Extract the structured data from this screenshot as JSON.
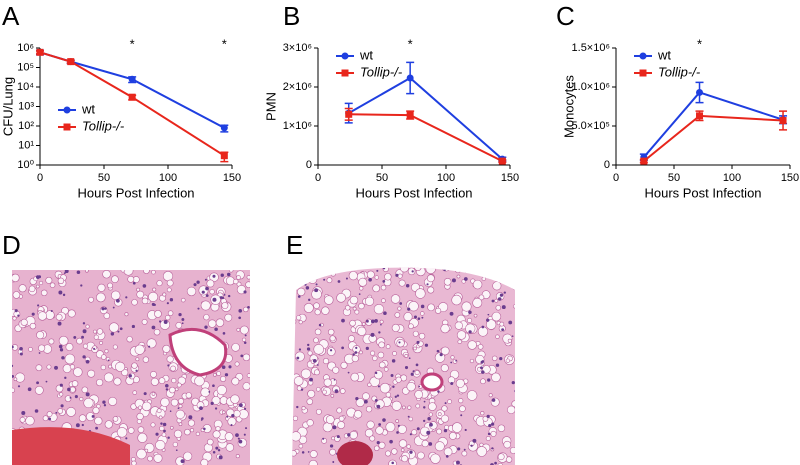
{
  "chart_data": [
    {
      "type": "line",
      "panel_label": "A",
      "ylabel": "CFU/Lung",
      "xlabel": "Hours Post Infection",
      "x": [
        0,
        24,
        72,
        144
      ],
      "xlim": [
        0,
        150
      ],
      "xticks": [
        0,
        50,
        100,
        150
      ],
      "log_scale": true,
      "ylim": [
        1,
        1000000
      ],
      "yticks": [
        {
          "value": 1,
          "label": "10⁰"
        },
        {
          "value": 10,
          "label": "10¹"
        },
        {
          "value": 100,
          "label": "10²"
        },
        {
          "value": 1000,
          "label": "10³"
        },
        {
          "value": 10000,
          "label": "10⁴"
        },
        {
          "value": 100000,
          "label": "10⁵"
        },
        {
          "value": 1000000,
          "label": "10⁶"
        }
      ],
      "legend": "center left",
      "series": [
        {
          "name": "wt",
          "color": "#1f3fe0",
          "marker": "circle",
          "values": [
            600000,
            200000,
            25000,
            80
          ],
          "errors": [
            150000,
            40000,
            8000,
            30
          ]
        },
        {
          "name": "Tollip-/-",
          "color": "#e8261c",
          "marker": "square",
          "values": [
            600000,
            200000,
            3000,
            3
          ],
          "errors": [
            100000,
            30000,
            800,
            1.5
          ]
        }
      ],
      "annotations": [
        {
          "text": "*",
          "x": 72
        },
        {
          "text": "*",
          "x": 144
        }
      ]
    },
    {
      "type": "line",
      "panel_label": "B",
      "ylabel": "PMN",
      "xlabel": "Hours Post Infection",
      "x": [
        24,
        72,
        144
      ],
      "xlim": [
        0,
        150
      ],
      "xticks": [
        0,
        50,
        100,
        150
      ],
      "log_scale": false,
      "ylim": [
        0,
        3000000
      ],
      "yticks": [
        0,
        {
          "value": 1000000,
          "label": "1×10⁶"
        },
        {
          "value": 2000000,
          "label": "2×10⁶"
        },
        {
          "value": 3000000,
          "label": "3×10⁶"
        }
      ],
      "legend": "upper left",
      "series": [
        {
          "name": "wt",
          "color": "#1f3fe0",
          "marker": "circle",
          "values": [
            1330000,
            2230000,
            150000
          ],
          "errors": [
            250000,
            400000,
            50000
          ]
        },
        {
          "name": "Tollip-/-",
          "color": "#e8261c",
          "marker": "square",
          "values": [
            1300000,
            1280000,
            100000
          ],
          "errors": [
            150000,
            100000,
            30000
          ]
        }
      ],
      "annotations": [
        {
          "text": "*",
          "x": 72
        }
      ]
    },
    {
      "type": "line",
      "panel_label": "C",
      "ylabel": "Monocytes",
      "xlabel": "Hours Post Infection",
      "x": [
        24,
        72,
        144
      ],
      "xlim": [
        0,
        150
      ],
      "xticks": [
        0,
        50,
        100,
        150
      ],
      "log_scale": false,
      "ylim": [
        0,
        1500000
      ],
      "yticks": [
        0,
        {
          "value": 500000,
          "label": "5.0×10⁵"
        },
        {
          "value": 1000000,
          "label": "1.0×10⁶"
        },
        {
          "value": 1500000,
          "label": "1.5×10⁶"
        }
      ],
      "legend": "upper left",
      "series": [
        {
          "name": "wt",
          "color": "#1f3fe0",
          "marker": "circle",
          "values": [
            100000,
            930000,
            580000
          ],
          "errors": [
            40000,
            130000,
            50000
          ]
        },
        {
          "name": "Tollip-/-",
          "color": "#e8261c",
          "marker": "square",
          "values": [
            50000,
            630000,
            570000
          ],
          "errors": [
            20000,
            60000,
            120000
          ]
        }
      ],
      "annotations": [
        {
          "text": "*",
          "x": 72
        }
      ]
    }
  ],
  "images": [
    {
      "panel_label": "D"
    },
    {
      "panel_label": "E"
    }
  ]
}
